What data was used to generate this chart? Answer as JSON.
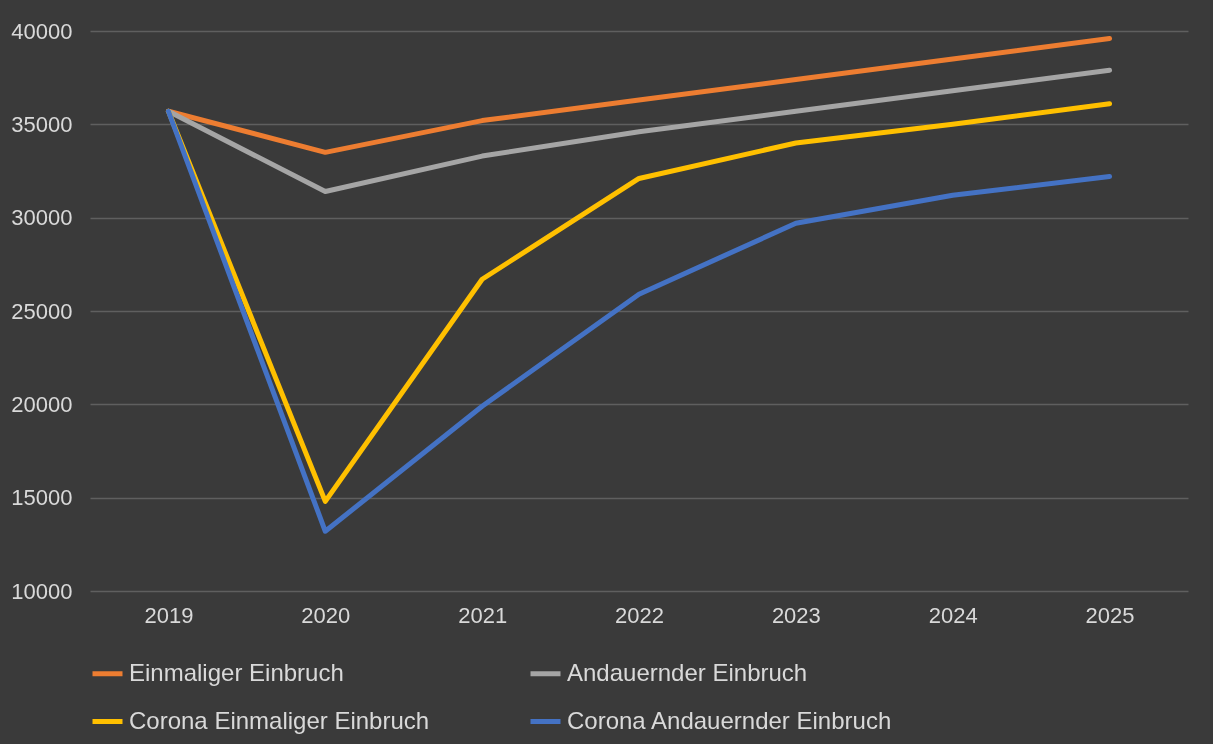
{
  "chart_data": {
    "type": "line",
    "categories": [
      "2019",
      "2020",
      "2021",
      "2022",
      "2023",
      "2024",
      "2025"
    ],
    "series": [
      {
        "name": "Einmaliger Einbruch",
        "color": "#ed7d31",
        "values": [
          35700,
          33500,
          35200,
          36300,
          37400,
          38500,
          39600
        ]
      },
      {
        "name": "Andauernder Einbruch",
        "color": "#a5a5a5",
        "values": [
          35700,
          31400,
          33300,
          34600,
          35700,
          36800,
          37900
        ]
      },
      {
        "name": "Corona Einmaliger Einbruch",
        "color": "#ffc000",
        "values": [
          35700,
          14800,
          26700,
          32100,
          34000,
          35000,
          36100
        ]
      },
      {
        "name": "Corona Andauernder Einbruch",
        "color": "#4472c4",
        "values": [
          35700,
          13200,
          19900,
          25900,
          29700,
          31200,
          32200
        ]
      }
    ],
    "ylim": [
      10000,
      40000
    ],
    "yticks": [
      10000,
      15000,
      20000,
      25000,
      30000,
      35000,
      40000
    ],
    "grid": "y",
    "legend": "bottom",
    "marker": "none",
    "line_style": "solid"
  }
}
